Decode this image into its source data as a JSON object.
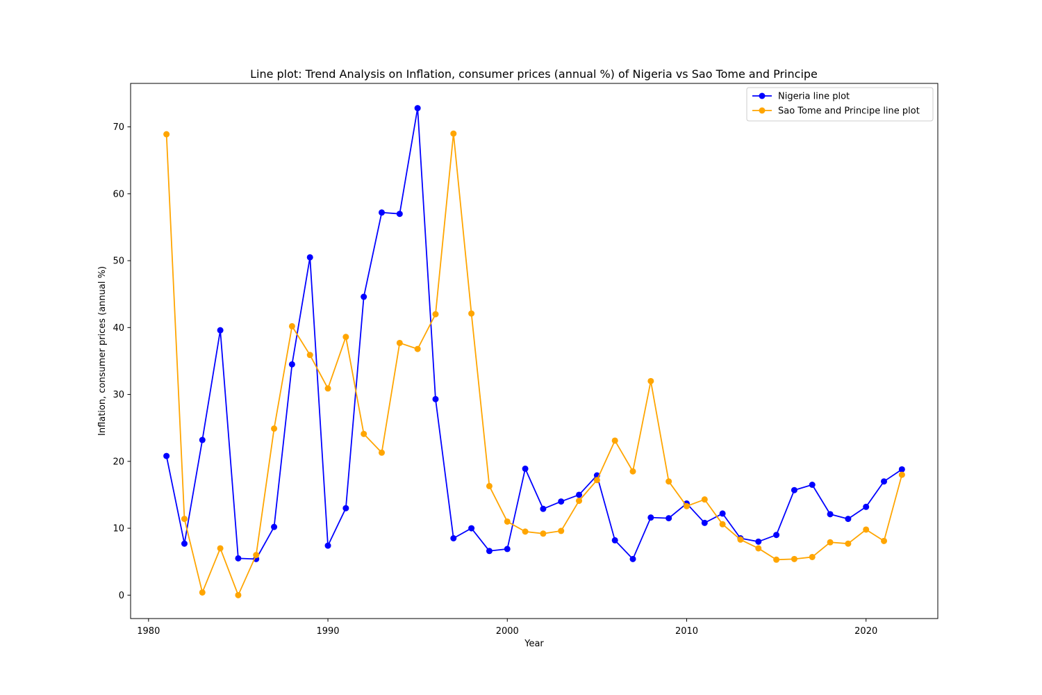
{
  "chart_data": {
    "type": "line",
    "title": "Line plot: Trend Analysis on Inflation, consumer prices (annual %) of Nigeria vs Sao Tome and Principe",
    "xlabel": "Year",
    "ylabel": "Inflation, consumer prices (annual %)",
    "xlim": [
      1979,
      2024
    ],
    "ylim": [
      -3.5,
      76.5
    ],
    "xticks": [
      1980,
      1990,
      2000,
      2010,
      2020
    ],
    "yticks": [
      0,
      10,
      20,
      30,
      40,
      50,
      60,
      70
    ],
    "grid": false,
    "legend_position": "top-right",
    "x": [
      1981,
      1982,
      1983,
      1984,
      1985,
      1986,
      1987,
      1988,
      1989,
      1990,
      1991,
      1992,
      1993,
      1994,
      1995,
      1996,
      1997,
      1998,
      1999,
      2000,
      2001,
      2002,
      2003,
      2004,
      2005,
      2006,
      2007,
      2008,
      2009,
      2010,
      2011,
      2012,
      2013,
      2014,
      2015,
      2016,
      2017,
      2018,
      2019,
      2020,
      2021,
      2022
    ],
    "series": [
      {
        "name": "Nigeria line plot",
        "color": "#0000ff",
        "values": [
          20.8,
          7.7,
          23.2,
          39.6,
          5.5,
          5.4,
          10.2,
          34.5,
          50.5,
          7.4,
          13.0,
          44.6,
          57.2,
          57.0,
          72.8,
          29.3,
          8.5,
          10.0,
          6.6,
          6.9,
          18.9,
          12.9,
          14.0,
          15.0,
          17.9,
          8.2,
          5.4,
          11.6,
          11.5,
          13.7,
          10.8,
          12.2,
          8.5,
          8.0,
          9.0,
          15.7,
          16.5,
          12.1,
          11.4,
          13.2,
          17.0,
          18.8
        ]
      },
      {
        "name": "Sao Tome and Principe line plot",
        "color": "#ffa500",
        "values": [
          68.9,
          11.4,
          0.4,
          7.0,
          0.0,
          6.0,
          24.9,
          40.2,
          35.9,
          30.9,
          38.6,
          24.1,
          21.3,
          37.7,
          36.8,
          42.0,
          69.0,
          42.1,
          16.3,
          11.0,
          9.5,
          9.2,
          9.6,
          14.1,
          17.2,
          23.1,
          18.5,
          32.0,
          17.0,
          13.3,
          14.3,
          10.6,
          8.3,
          7.0,
          5.3,
          5.4,
          5.7,
          7.9,
          7.7,
          9.8,
          8.1,
          18.0
        ]
      }
    ]
  }
}
